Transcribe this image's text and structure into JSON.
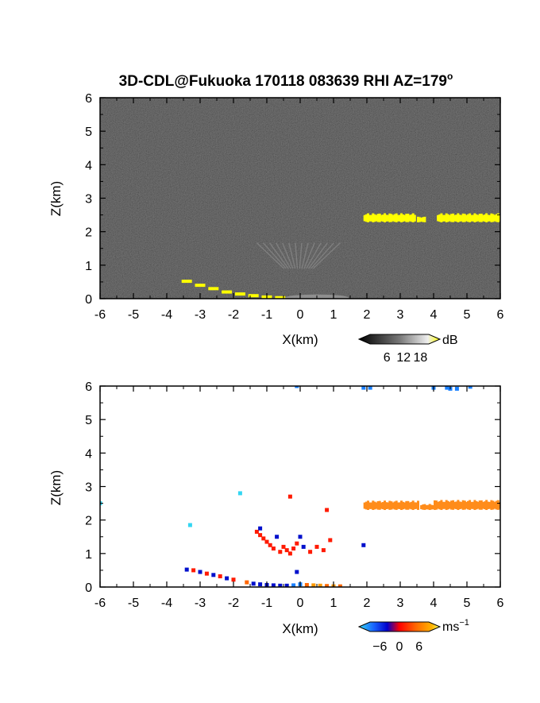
{
  "title": "3D-CDL@Fukuoka 170118 083639 RHI AZ=179",
  "title_suffix": "o",
  "chart_data": [
    {
      "type": "heatmap",
      "panel": "reflectivity",
      "xlabel": "X(km)",
      "ylabel": "Z(km)",
      "xlim": [
        -6,
        6
      ],
      "ylim": [
        0,
        6
      ],
      "xticks": [
        "-6",
        "-5",
        "-4",
        "-3",
        "-2",
        "-1",
        "0",
        "1",
        "2",
        "3",
        "4",
        "5",
        "6"
      ],
      "yticks": [
        "0",
        "1",
        "2",
        "3",
        "4",
        "5",
        "6"
      ],
      "background": "#2b2b2b",
      "colorbar": {
        "unit": "dB",
        "ticks": [
          "6",
          "12",
          "18"
        ],
        "range": [
          0,
          21
        ]
      },
      "features": [
        {
          "name": "cloud-layer",
          "color": "#ffff00",
          "segments": [
            {
              "x0": 1.9,
              "x1": 3.4,
              "z0": 2.28,
              "z1": 2.55
            },
            {
              "x0": 3.5,
              "x1": 3.7,
              "z0": 2.28,
              "z1": 2.45
            },
            {
              "x0": 4.1,
              "x1": 6.0,
              "z0": 2.28,
              "z1": 2.55
            }
          ]
        },
        {
          "name": "low-echo",
          "color": "#ffff00",
          "points": [
            [
              -3.4,
              0.52
            ],
            [
              -3.0,
              0.4
            ],
            [
              -2.6,
              0.3
            ],
            [
              -2.2,
              0.2
            ],
            [
              -1.8,
              0.14
            ],
            [
              -1.4,
              0.09
            ],
            [
              -1.0,
              0.05
            ],
            [
              -0.6,
              0.03
            ]
          ]
        },
        {
          "name": "faint-plume",
          "color": "#8a8a8a",
          "x0": -1.3,
          "x1": 1.2,
          "z0": 0.9,
          "z1": 1.75
        }
      ]
    },
    {
      "type": "heatmap",
      "panel": "doppler-velocity",
      "xlabel": "X(km)",
      "ylabel": "Z(km)",
      "xlim": [
        -6,
        6
      ],
      "ylim": [
        0,
        6
      ],
      "xticks": [
        "-6",
        "-5",
        "-4",
        "-3",
        "-2",
        "-1",
        "0",
        "1",
        "2",
        "3",
        "4",
        "5",
        "6"
      ],
      "yticks": [
        "0",
        "1",
        "2",
        "3",
        "4",
        "5",
        "6"
      ],
      "background": "#ffffff",
      "colorbar": {
        "unit": "ms",
        "unit_exp": "−1",
        "ticks": [
          "−6",
          "0",
          "6"
        ],
        "range": [
          -9,
          9
        ]
      },
      "features": [
        {
          "name": "cloud-layer-velocity",
          "color": "#ff8c1a",
          "segments": [
            {
              "x0": 1.9,
              "x1": 3.5,
              "z0": 2.3,
              "z1": 2.58
            },
            {
              "x0": 3.6,
              "x1": 4.0,
              "z0": 2.3,
              "z1": 2.48
            },
            {
              "x0": 4.0,
              "x1": 6.0,
              "z0": 2.3,
              "z1": 2.6
            }
          ]
        },
        {
          "name": "low-echo-velocity",
          "points": [
            [
              -3.4,
              0.52,
              -6
            ],
            [
              -3.2,
              0.5,
              4
            ],
            [
              -3.0,
              0.45,
              -6
            ],
            [
              -2.8,
              0.4,
              4
            ],
            [
              -2.6,
              0.36,
              -6
            ],
            [
              -2.4,
              0.32,
              4
            ],
            [
              -2.2,
              0.26,
              -6
            ],
            [
              -2.0,
              0.22,
              4
            ],
            [
              -1.6,
              0.14,
              5
            ],
            [
              -1.4,
              0.1,
              -6
            ],
            [
              -1.2,
              0.08,
              -6
            ],
            [
              -1.0,
              0.06,
              -6
            ],
            [
              -0.8,
              0.05,
              -6
            ],
            [
              -0.6,
              0.04,
              -6
            ],
            [
              -0.4,
              0.04,
              -7
            ],
            [
              -0.2,
              0.05,
              -8
            ],
            [
              0.0,
              0.08,
              -8
            ],
            [
              0.2,
              0.06,
              6
            ],
            [
              0.4,
              0.05,
              7
            ],
            [
              0.6,
              0.04,
              7
            ],
            [
              0.8,
              0.03,
              6
            ],
            [
              1.0,
              0.02,
              7
            ],
            [
              1.2,
              0.02,
              6
            ]
          ]
        },
        {
          "name": "scattered-echoes",
          "points": [
            [
              -1.3,
              1.65,
              4
            ],
            [
              -1.2,
              1.55,
              4
            ],
            [
              -1.1,
              1.45,
              4
            ],
            [
              -1.0,
              1.35,
              4
            ],
            [
              -0.9,
              1.25,
              4
            ],
            [
              -0.8,
              1.15,
              4
            ],
            [
              -0.6,
              1.05,
              4
            ],
            [
              -1.2,
              1.75,
              -7
            ],
            [
              -0.7,
              1.5,
              -7
            ],
            [
              -0.5,
              1.2,
              4
            ],
            [
              -0.4,
              1.1,
              4
            ],
            [
              -0.3,
              1.0,
              4
            ],
            [
              -0.2,
              1.15,
              4
            ],
            [
              -0.1,
              1.3,
              4
            ],
            [
              0.0,
              1.5,
              -7
            ],
            [
              0.1,
              1.2,
              -7
            ],
            [
              0.3,
              1.05,
              4
            ],
            [
              0.5,
              1.2,
              4
            ],
            [
              0.7,
              1.1,
              4
            ],
            [
              0.9,
              1.4,
              4
            ],
            [
              -0.3,
              2.7,
              4
            ],
            [
              0.8,
              2.3,
              4
            ],
            [
              1.9,
              1.25,
              -7
            ],
            [
              -0.1,
              0.45,
              -7
            ],
            [
              -1.8,
              2.8,
              -10
            ],
            [
              -3.3,
              1.85,
              -10
            ],
            [
              -6.0,
              2.5,
              -10
            ]
          ]
        },
        {
          "name": "top-echoes",
          "points": [
            [
              -0.1,
              6.0,
              -8
            ],
            [
              1.9,
              5.95,
              -8
            ],
            [
              2.1,
              5.95,
              -8
            ],
            [
              4.0,
              5.95,
              -8
            ],
            [
              4.5,
              5.92,
              -8
            ],
            [
              4.7,
              5.92,
              -8
            ],
            [
              5.1,
              5.98,
              -8
            ],
            [
              4.4,
              5.95,
              -8
            ]
          ]
        }
      ]
    }
  ]
}
